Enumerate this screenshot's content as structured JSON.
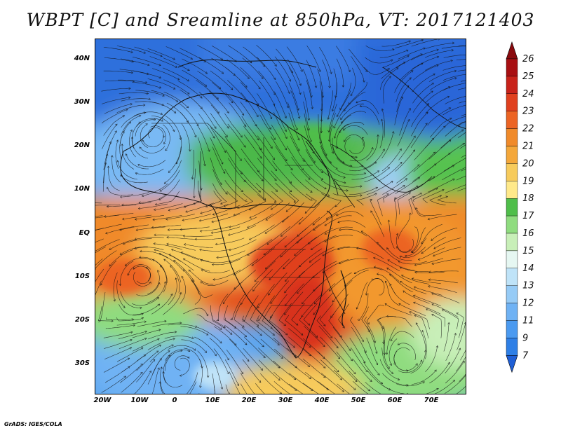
{
  "title": "WBPT [C] and Sreamline at 850hPa, VT: 2017121403",
  "credit": "GrADS: IGES/COLA",
  "lat_labels": [
    "40N",
    "30N",
    "20N",
    "10N",
    "EQ",
    "10S",
    "20S",
    "30S"
  ],
  "lon_labels": [
    "20W",
    "10W",
    "0",
    "10E",
    "20E",
    "30E",
    "40E",
    "50E",
    "60E",
    "70E"
  ],
  "colorbar": {
    "labels": [
      "7",
      "9",
      "11",
      "12",
      "13",
      "14",
      "15",
      "16",
      "17",
      "18",
      "19",
      "20",
      "21",
      "22",
      "23",
      "24",
      "25",
      "26"
    ],
    "colors": [
      "#1f5fd6",
      "#2e7fe6",
      "#4b9af0",
      "#6fb2f4",
      "#96cbf6",
      "#bfe3f8",
      "#e6f7f2",
      "#c8efb8",
      "#8fdc7f",
      "#4fbe4a",
      "#ffe98a",
      "#f7cb5c",
      "#f4a73a",
      "#f08a2a",
      "#ec6424",
      "#e0401e",
      "#c8221a",
      "#a80f12",
      "#8a0a0e"
    ]
  },
  "map": {
    "lon_range": [
      -22,
      80
    ],
    "lat_range": [
      -36,
      45
    ],
    "variable": "Wet-bulb potential temperature (C)",
    "level": "850hPa",
    "valid_time": "2017121403"
  }
}
